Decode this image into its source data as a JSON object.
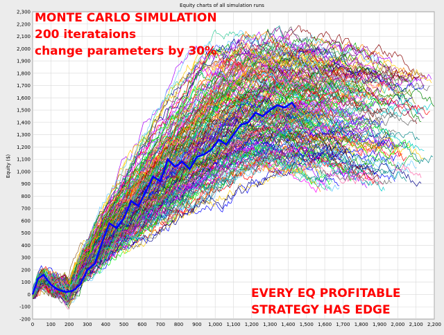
{
  "window_title": "Equity charts of all simulation runs",
  "overlay": {
    "line1": "MONTE CARLO SIMULATION",
    "line2": "200 iterataions",
    "line3": "change parameters by 30%",
    "bottom1": "EVERY EQ PROFITABLE",
    "bottom2": "STRATEGY HAS EDGE",
    "color": "#ff0000"
  },
  "chart_data": {
    "type": "line",
    "title": "Equity charts of all simulation runs",
    "xlabel": "",
    "ylabel": "Equity ($)",
    "xlim": [
      0,
      2200
    ],
    "ylim": [
      -200,
      2300
    ],
    "x_ticks": [
      "0",
      "100",
      "200",
      "300",
      "400",
      "500",
      "600",
      "700",
      "800",
      "900",
      "1,000",
      "1,100",
      "1,200",
      "1,300",
      "1,400",
      "1,500",
      "1,600",
      "1,700",
      "1,800",
      "1,900",
      "2,000",
      "2,100",
      "2,200"
    ],
    "y_ticks": [
      "-200",
      "-100",
      "0",
      "100",
      "200",
      "300",
      "400",
      "500",
      "600",
      "700",
      "800",
      "900",
      "1,000",
      "1,100",
      "1,200",
      "1,300",
      "1,400",
      "1,500",
      "1,600",
      "1,700",
      "1,800",
      "1,900",
      "2,000",
      "2,100",
      "2,200",
      "2,300"
    ],
    "grid": true,
    "n_runs": 200,
    "highlight_series": {
      "color": "#0000ff",
      "x": [
        0,
        30,
        60,
        100,
        140,
        180,
        220,
        260,
        300,
        340,
        380,
        420,
        460,
        500,
        540,
        580,
        620,
        660,
        700,
        740,
        780,
        820,
        860,
        900,
        940,
        980,
        1020,
        1060,
        1100,
        1140,
        1180,
        1220,
        1260,
        1300,
        1340,
        1380,
        1420,
        1440
      ],
      "y": [
        0,
        130,
        160,
        80,
        40,
        20,
        30,
        80,
        200,
        250,
        420,
        580,
        540,
        620,
        760,
        720,
        840,
        960,
        920,
        1100,
        1040,
        1080,
        1020,
        1120,
        1140,
        1180,
        1260,
        1220,
        1300,
        1380,
        1400,
        1480,
        1450,
        1500,
        1540,
        1520,
        1560,
        1520
      ]
    },
    "bundle": {
      "peak_x": [
        1340,
        1500,
        1800
      ],
      "peak_y": [
        2000,
        2200,
        2000
      ],
      "end_x_range": [
        1480,
        2200
      ],
      "end_y_range": [
        900,
        1900
      ]
    },
    "series_colors": [
      "#ff0000",
      "#00aa00",
      "#0000ff",
      "#ff00ff",
      "#00cccc",
      "#ffcc00",
      "#880000",
      "#008800",
      "#000088",
      "#888800",
      "#880088",
      "#008888",
      "#ff8800",
      "#00ff00",
      "#aa00ff",
      "#666666",
      "#ff66aa",
      "#66ccff",
      "#996633",
      "#33cc99"
    ]
  }
}
